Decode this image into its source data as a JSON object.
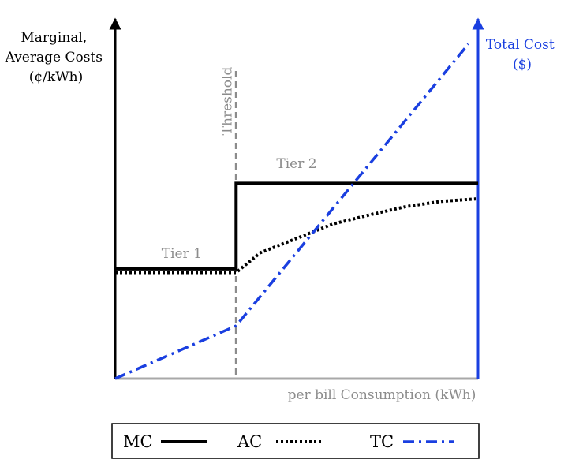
{
  "chart_data": {
    "type": "line",
    "title": "",
    "left_axis_label": [
      "Marginal,",
      "Average Costs",
      "(¢/kWh)"
    ],
    "right_axis_label": [
      "Total Cost",
      "($)"
    ],
    "xlabel": "per bill Consumption (kWh)",
    "threshold_label": "Threshold",
    "threshold_x": 1,
    "xlim": [
      0,
      3
    ],
    "ylim_left": [
      0,
      1
    ],
    "ylim_right": [
      0,
      1
    ],
    "tier_labels": [
      {
        "text": "Tier 1",
        "x": 0.55,
        "y": 0.335
      },
      {
        "text": "Tier 2",
        "x": 1.5,
        "y": 0.585
      }
    ],
    "series": [
      {
        "name": "MC",
        "axis": "left",
        "style": "solid",
        "color": "#000000",
        "points": [
          [
            0,
            0.305
          ],
          [
            1,
            0.305
          ],
          [
            1,
            0.543
          ],
          [
            3,
            0.543
          ]
        ]
      },
      {
        "name": "AC",
        "axis": "left",
        "style": "dotted",
        "color": "#000000",
        "points": [
          [
            0,
            0.295
          ],
          [
            1,
            0.295
          ],
          [
            1.2,
            0.35
          ],
          [
            1.5,
            0.39
          ],
          [
            1.8,
            0.43
          ],
          [
            2.1,
            0.455
          ],
          [
            2.4,
            0.478
          ],
          [
            2.7,
            0.493
          ],
          [
            3,
            0.5
          ]
        ]
      },
      {
        "name": "TC",
        "axis": "right",
        "style": "dashdot",
        "color": "#1a3fe0",
        "points": [
          [
            0,
            0
          ],
          [
            1,
            0.147
          ],
          [
            2.92,
            0.93
          ]
        ]
      }
    ],
    "legend": {
      "placement": "bottom",
      "items": [
        "MC",
        "AC",
        "TC"
      ]
    }
  }
}
